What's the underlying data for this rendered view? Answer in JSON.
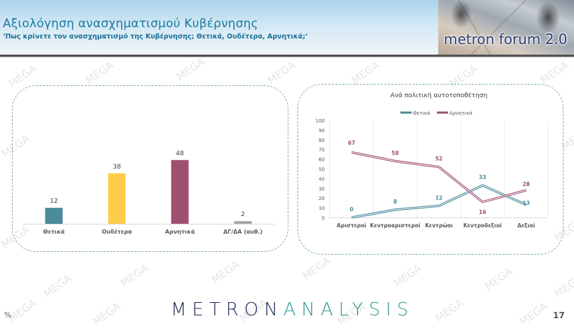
{
  "header": {
    "title": "Αξιολόγηση ανασχηματισμού Κυβέρνησης",
    "subtitle": "‘Πως κρίνετε τον ανασχηματισμό της Κυβέρνησης; Θετικά, Ουδέτερα, Αρνητικά;’",
    "logo_text": "metron forum 2.0"
  },
  "watermark": "MEGA",
  "footer": {
    "unit": "%",
    "brand_part1": "METRON",
    "brand_part2": "ANALYSIS",
    "page_number": "17"
  },
  "chart_data": [
    {
      "type": "bar",
      "title": "",
      "categories": [
        "Θετικά",
        "Ουδέτερα",
        "Αρνητικά",
        "ΔΓ/ΔΑ (αυθ.)"
      ],
      "values": [
        12,
        38,
        48,
        2
      ],
      "colors": [
        "#4a8a9a",
        "#ffcd4a",
        "#9e5073",
        "#a6a6a6"
      ],
      "value_labels": [
        "12",
        "38",
        "48",
        "2"
      ],
      "xlabel": "",
      "ylabel": "",
      "ylim": [
        0,
        70
      ],
      "grid": false,
      "legend": false
    },
    {
      "type": "line",
      "title": "Ανά πολιτική αυτοτοποθέτηση",
      "categories": [
        "Αριστεροί",
        "Κεντροαριστεροί",
        "Κεντρώοι",
        "Κεντροδεξιοί",
        "Δεξιοί"
      ],
      "series": [
        {
          "name": "Θετικά",
          "values": [
            0,
            8,
            12,
            33,
            13
          ],
          "color": "#4a8a9a",
          "labels": [
            "0",
            "8",
            "12",
            "33",
            "13"
          ]
        },
        {
          "name": "Αρνητικά",
          "values": [
            67,
            58,
            52,
            16,
            28
          ],
          "color": "#9e5073",
          "labels": [
            "67",
            "58",
            "52",
            "16",
            "28"
          ]
        }
      ],
      "y_ticks": [
        "0",
        "10",
        "20",
        "30",
        "40",
        "50",
        "60",
        "70",
        "80",
        "90",
        "100"
      ],
      "ylim": [
        0,
        100
      ],
      "xlabel": "",
      "ylabel": "",
      "grid": "vertical",
      "legend_position": "top"
    }
  ]
}
